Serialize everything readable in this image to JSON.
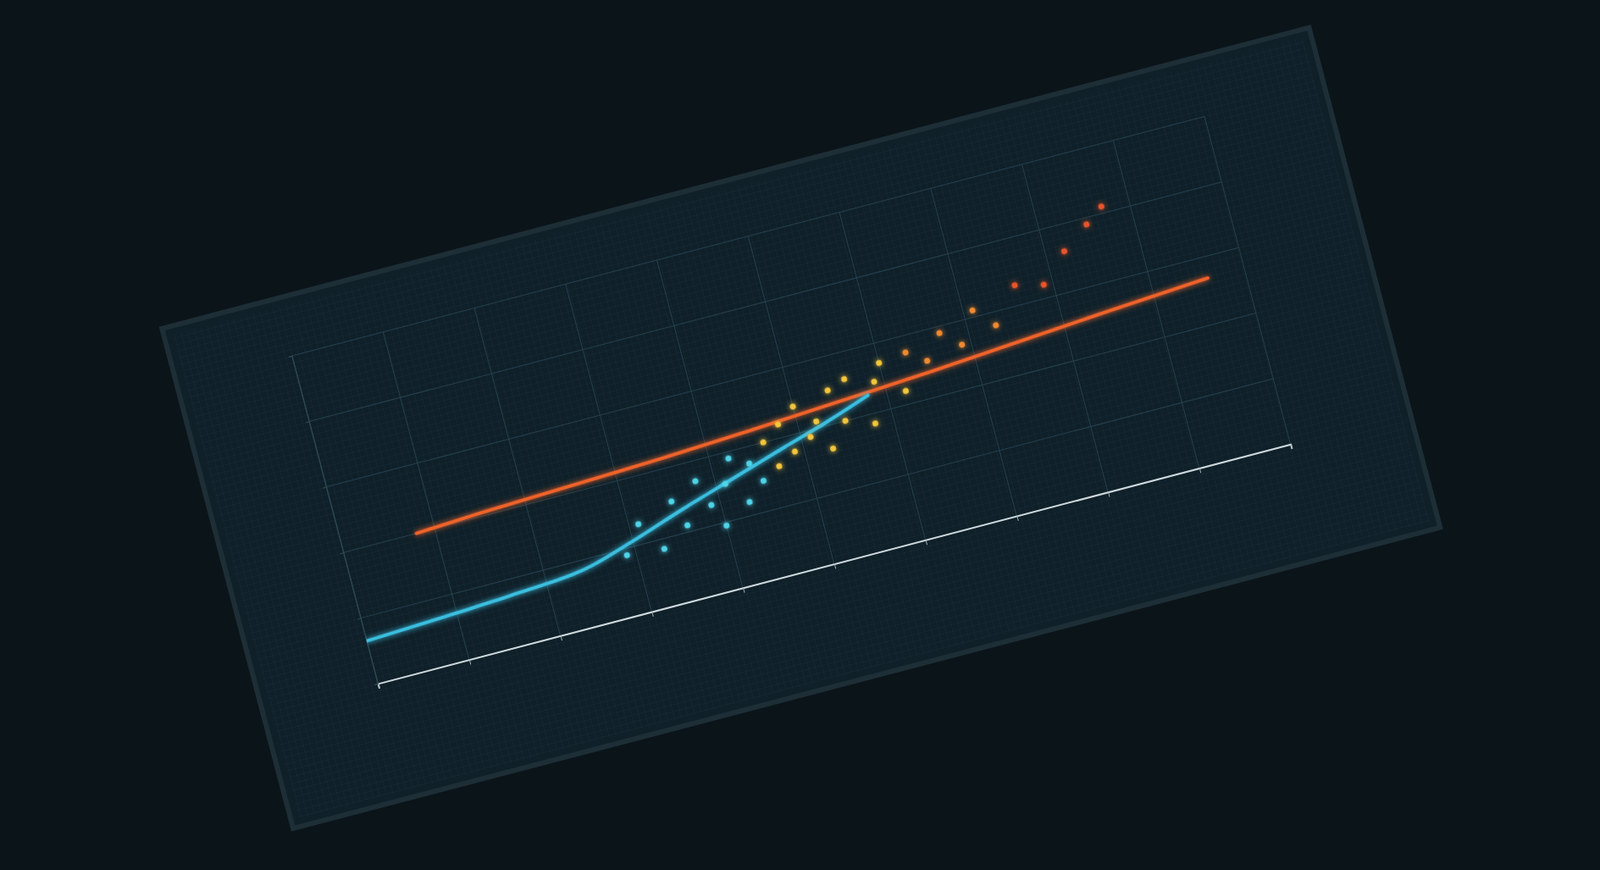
{
  "chart_data": {
    "type": "line",
    "xlim": [
      0,
      10
    ],
    "xticks": [
      0,
      1,
      2,
      3,
      4,
      5,
      6,
      7,
      8,
      9,
      10
    ],
    "ylim": [
      0,
      5
    ],
    "yticks": [
      0,
      1,
      2,
      3,
      4,
      5
    ],
    "grid": true,
    "tick_labels": false,
    "series": [
      {
        "type": "line",
        "color": "#f0642a",
        "line_style": "solid",
        "x": [
          0.8,
          1.5,
          2.5,
          3.5,
          4.5,
          5.5,
          6.5,
          7.5,
          8.5,
          9.6
        ],
        "values": [
          2.0,
          2.05,
          2.1,
          2.15,
          2.22,
          2.3,
          2.38,
          2.48,
          2.58,
          2.68
        ]
      },
      {
        "type": "line",
        "color": "#3bbfe0",
        "line_style": "solid",
        "x": [
          0,
          0.8,
          1.6,
          2.4,
          3.0,
          3.6,
          4.2,
          4.8,
          5.3,
          5.8
        ],
        "values": [
          0.65,
          0.7,
          0.76,
          0.85,
          1.08,
          1.35,
          1.6,
          1.85,
          2.05,
          2.28
        ]
      },
      {
        "type": "scatter",
        "marker": "circle",
        "x": [
          2.9,
          3.1,
          3.3,
          3.5,
          3.6,
          3.8,
          3.9,
          4.0,
          4.1,
          4.2,
          4.3,
          4.4,
          4.5,
          4.6,
          4.7,
          4.8,
          4.9,
          5.0,
          5.1,
          5.2,
          5.3,
          5.4,
          5.5,
          5.6,
          5.8,
          5.9,
          6.0,
          6.2,
          6.3,
          6.5,
          6.7,
          6.9,
          7.1,
          7.3,
          7.6,
          7.9,
          8.2,
          8.5,
          8.7
        ],
        "values": [
          0.9,
          1.3,
          0.85,
          1.5,
          1.1,
          1.7,
          1.3,
          0.95,
          1.55,
          1.9,
          1.2,
          1.75,
          1.45,
          2.0,
          1.6,
          2.2,
          1.75,
          2.4,
          1.9,
          2.1,
          1.65,
          2.5,
          2.0,
          2.6,
          1.85,
          2.45,
          2.7,
          2.2,
          2.75,
          2.55,
          2.9,
          2.65,
          3.1,
          2.8,
          3.3,
          3.2,
          3.6,
          3.9,
          4.1
        ],
        "colors": [
          "#4fd3e8",
          "#4fd3e8",
          "#4fd3e8",
          "#4fd3e8",
          "#4fd3e8",
          "#4fd3e8",
          "#4fd3e8",
          "#4fd3e8",
          "#4fd3e8",
          "#4fd3e8",
          "#4fd3e8",
          "#4fd3e8",
          "#4fd3e8",
          "#f2c53d",
          "#f2c53d",
          "#f2c53d",
          "#f2c53d",
          "#f2c53d",
          "#f2c53d",
          "#f2c53d",
          "#f2c53d",
          "#f2c53d",
          "#f2c53d",
          "#f2c53d",
          "#f2c53d",
          "#f2c53d",
          "#f2c53d",
          "#f2c53d",
          "#f08a30",
          "#f08a30",
          "#f08a30",
          "#f08a30",
          "#f08a30",
          "#f08a30",
          "#e8552a",
          "#e8552a",
          "#e8552a",
          "#e8552a",
          "#e8552a"
        ]
      }
    ]
  }
}
